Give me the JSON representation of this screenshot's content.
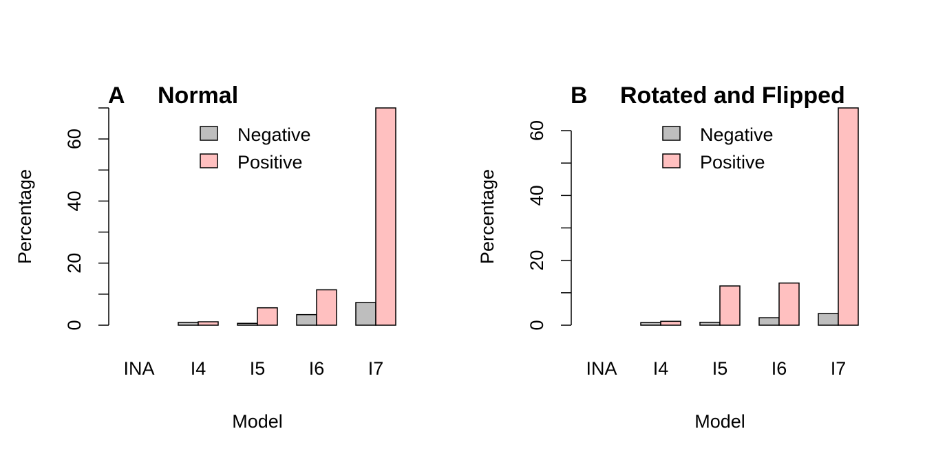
{
  "chart_data": [
    {
      "type": "bar",
      "panel_letter": "A",
      "title": "Normal",
      "xlabel": "Model",
      "ylabel": "Percentage",
      "categories": [
        "INA",
        "I4",
        "I5",
        "I6",
        "I7"
      ],
      "ylim": [
        0,
        70
      ],
      "yticks": [
        0,
        20,
        40,
        60
      ],
      "series": [
        {
          "name": "Negative",
          "color": "#bebebe",
          "values": [
            0,
            0.9,
            0.6,
            3.4,
            7.3
          ]
        },
        {
          "name": "Positive",
          "color": "#ffc0c0",
          "values": [
            0,
            1.1,
            5.6,
            11.4,
            70
          ]
        }
      ],
      "legend": "top-center",
      "grid": false
    },
    {
      "type": "bar",
      "panel_letter": "B",
      "title": "Rotated and Flipped",
      "xlabel": "Model",
      "ylabel": "Percentage",
      "categories": [
        "INA",
        "I4",
        "I5",
        "I6",
        "I7"
      ],
      "ylim": [
        0,
        67
      ],
      "yticks": [
        0,
        20,
        40,
        60
      ],
      "series": [
        {
          "name": "Negative",
          "color": "#bebebe",
          "values": [
            0,
            0.8,
            0.9,
            2.3,
            3.6
          ]
        },
        {
          "name": "Positive",
          "color": "#ffc0c0",
          "values": [
            0,
            1.2,
            12.1,
            13.0,
            67
          ]
        }
      ],
      "legend": "top-center",
      "grid": false
    }
  ]
}
